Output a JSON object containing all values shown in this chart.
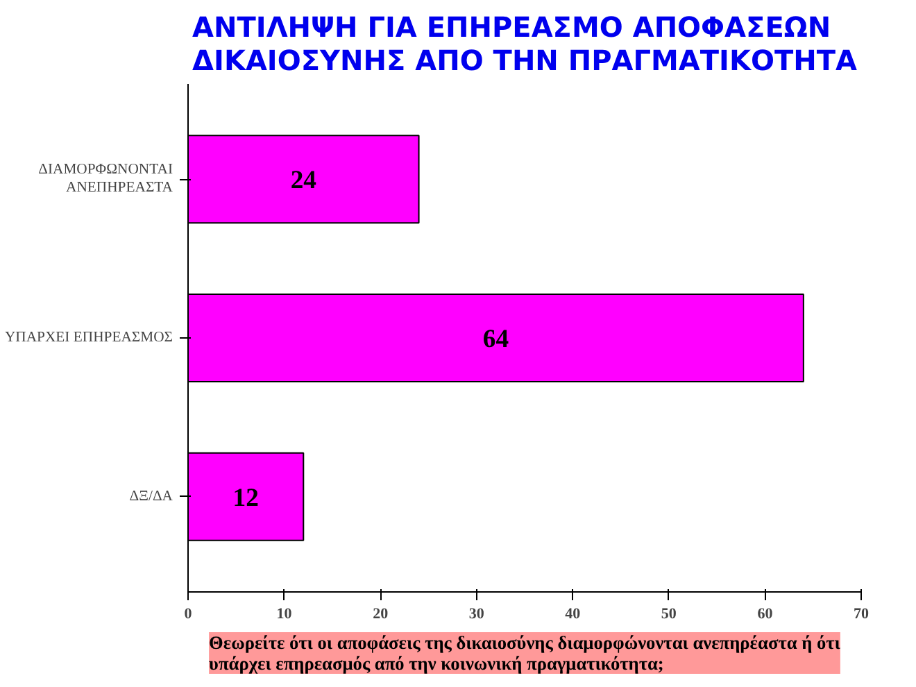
{
  "chart_data": {
    "type": "bar",
    "orientation": "horizontal",
    "title": "ΑΝΤΙΛΗΨΗ ΓΙΑ ΕΠΗΡΕΑΣΜΟ ΑΠΟΦΑΣΕΩΝ ΔΙΚΑΙΟΣΥΝΗΣ ΑΠΟ ΤΗΝ ΠΡΑΓΜΑΤΙΚΟΤΗΤΑ",
    "categories": [
      "ΔΙΑΜΟΡΦΩΝΟΝΤΑΙ ΑΝΕΠΗΡΕΑΣΤΑ",
      "ΥΠΑΡΧΕΙ ΕΠΗΡΕΑΣΜΟΣ",
      "ΔΞ/ΔΑ"
    ],
    "values": [
      24,
      64,
      12
    ],
    "color": "#ff00ff",
    "data_labels": true,
    "xlim": [
      0,
      70
    ],
    "xticks": [
      0,
      10,
      20,
      30,
      40,
      50,
      60,
      70
    ],
    "grid": false,
    "annotations": [
      "Θεωρείτε ότι οι αποφάσεις της δικαιοσύνης διαμορφώνονται ανεπηρέαστα ή ότι υπάρχει επηρεασμός από την κοινωνική πραγματικότητα;"
    ]
  }
}
